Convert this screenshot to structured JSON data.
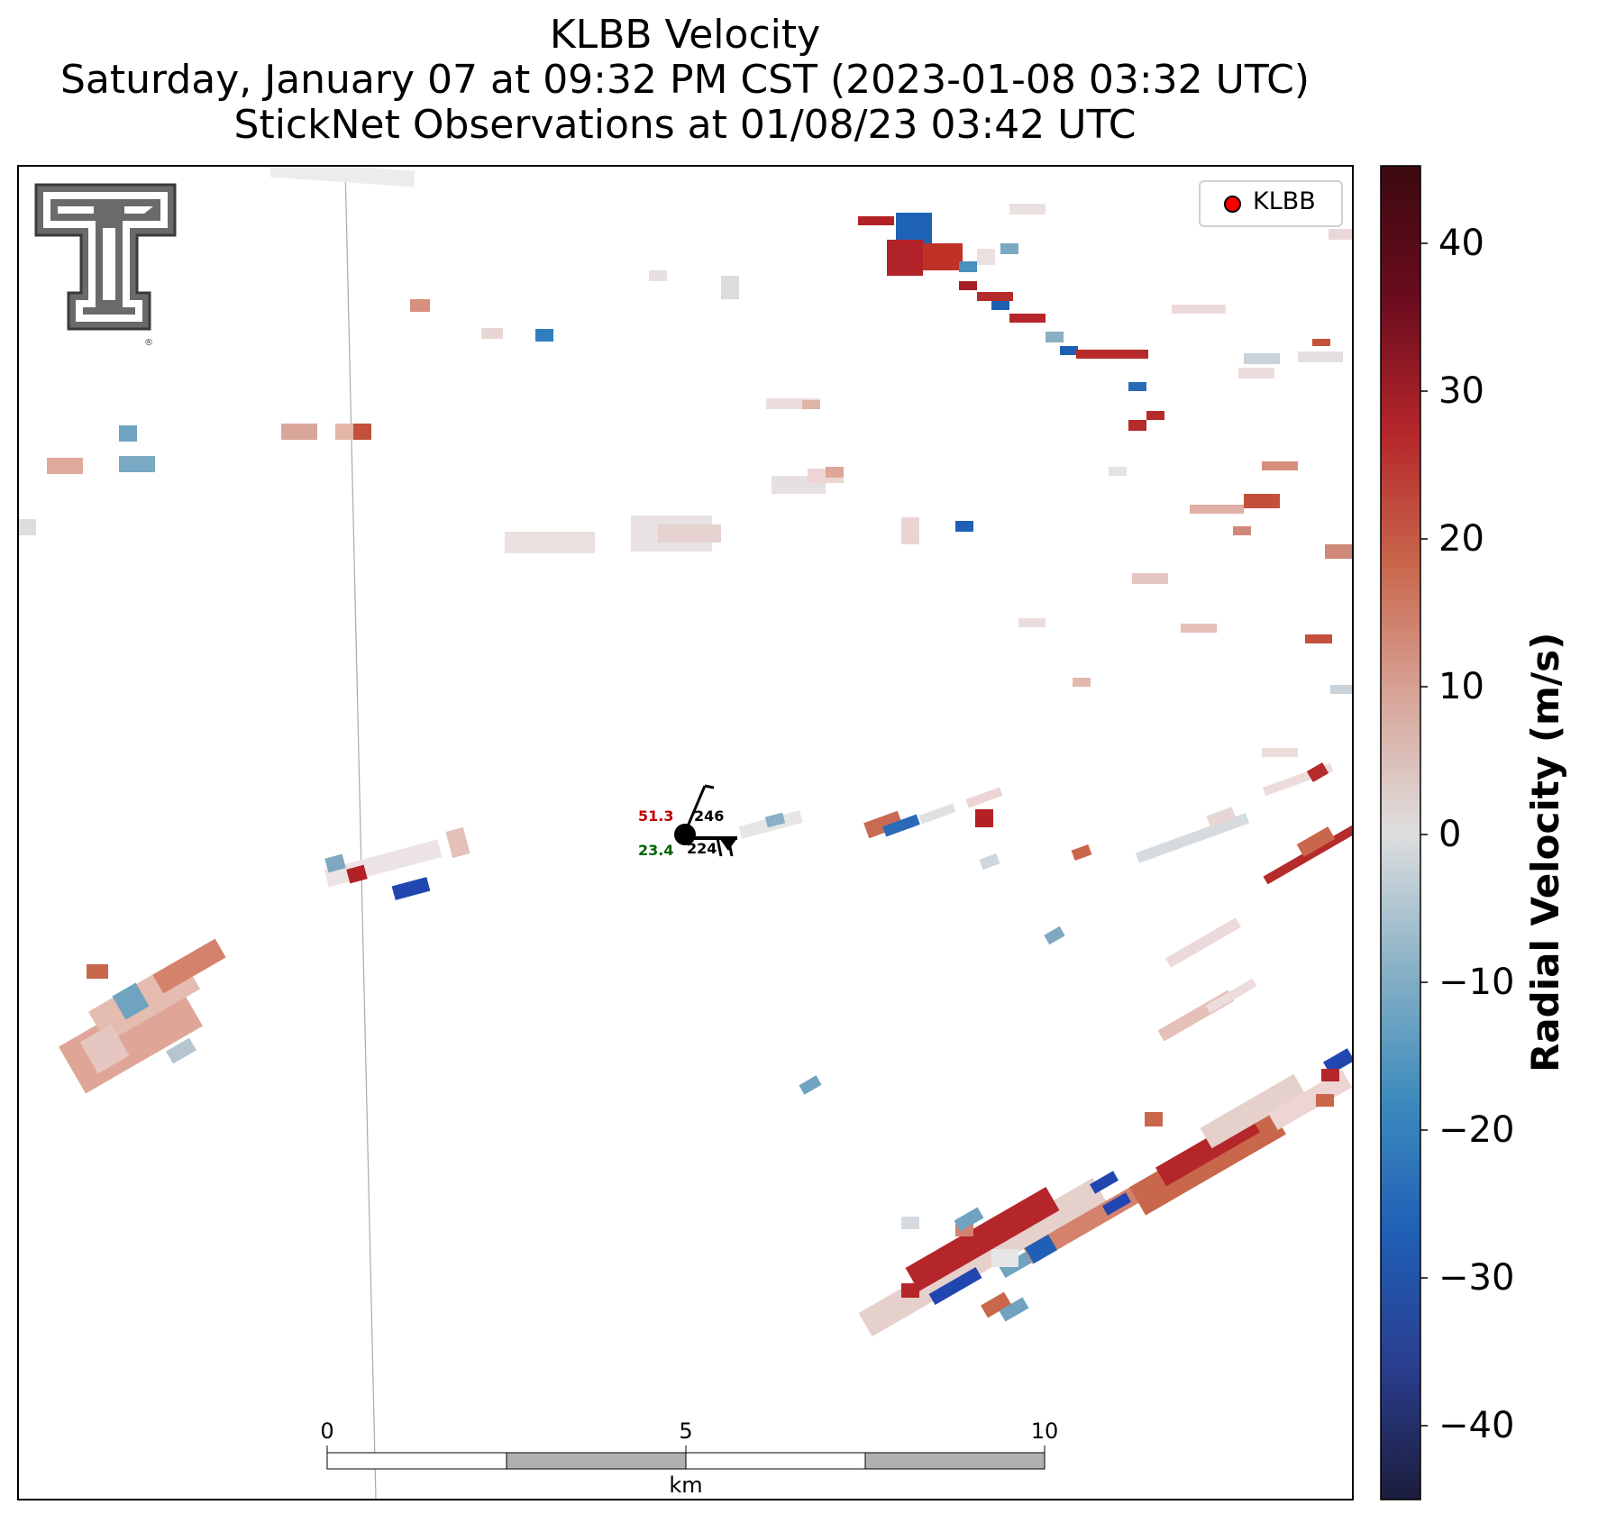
{
  "title": {
    "line1": "KLBB Velocity",
    "line2": "Saturday, January 07 at 09:32 PM CST (2023-01-08 03:32 UTC)",
    "line3": "StickNet Observations at 01/08/23 03:42 UTC"
  },
  "legend": {
    "label": "KLBB",
    "marker_color": "#ff0000"
  },
  "colorbar": {
    "label": "Radial Velocity (m/s)",
    "range": [
      -45,
      45
    ],
    "ticks": [
      "40",
      "30",
      "20",
      "10",
      "0",
      "−10",
      "−20",
      "−30",
      "−40"
    ],
    "tick_values": [
      40,
      30,
      20,
      10,
      0,
      -10,
      -20,
      -30,
      -40
    ],
    "colors": [
      "#1c1d3d",
      "#2a3e8f",
      "#1f5fb6",
      "#3d8bbd",
      "#8ab2c6",
      "#dedede",
      "#d8a69a",
      "#c9674c",
      "#b5262a",
      "#6b0c1e",
      "#3c0910"
    ]
  },
  "scalebar": {
    "ticks": [
      "0",
      "5",
      "10"
    ],
    "unit": "km"
  },
  "station": {
    "temperature": "51.3",
    "dewpoint": "23.4",
    "value_top": "246",
    "value_bottom": "224",
    "temperature_color": "#c00000",
    "dewpoint_color": "#006400"
  },
  "logo": {
    "name": "Texas Tech Double T"
  }
}
